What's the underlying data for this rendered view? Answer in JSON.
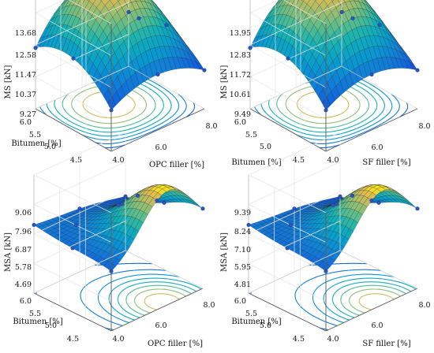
{
  "chart_data": [
    {
      "type": "surface",
      "zlabel": "MS [kN]",
      "ylabel": "Bitumen [%]",
      "xlabel": "OPC filler [%]",
      "z_ticks": [
        "13.68",
        "12.58",
        "11.47",
        "10.37",
        "9.27"
      ],
      "y_ticks": [
        "6.0",
        "5.5",
        "5.0",
        "4.5"
      ],
      "x_ticks": [
        "4.0",
        "6.0",
        "8.0"
      ],
      "zlim": [
        9.27,
        13.68
      ],
      "ylim": [
        4.5,
        6.0
      ],
      "xlim": [
        4.0,
        8.0
      ],
      "surface_shape": "dome",
      "contours": "floor",
      "grid": true
    },
    {
      "type": "surface",
      "zlabel": "MS [kN]",
      "ylabel": "Bitumen [%]",
      "xlabel": "SF filler [%]",
      "z_ticks": [
        "13.95",
        "12.83",
        "11.72",
        "10.61",
        "9.49"
      ],
      "y_ticks": [
        "6.0",
        "5.5",
        "5.0",
        "4.5"
      ],
      "x_ticks": [
        "4.0",
        "6.0",
        "8.0"
      ],
      "zlim": [
        9.49,
        13.95
      ],
      "ylim": [
        4.5,
        6.0
      ],
      "xlim": [
        4.0,
        8.0
      ],
      "surface_shape": "dome",
      "contours": "floor",
      "grid": true
    },
    {
      "type": "surface",
      "zlabel": "MSA [kN]",
      "ylabel": "Bitumen [%]",
      "xlabel": "OPC filler [%]",
      "z_ticks": [
        "9.06",
        "7.96",
        "6.87",
        "5.78",
        "4.69"
      ],
      "y_ticks": [
        "6.0",
        "5.5",
        "5.0",
        "4.5"
      ],
      "x_ticks": [
        "4.0",
        "6.0",
        "8.0"
      ],
      "zlim": [
        4.69,
        9.06
      ],
      "ylim": [
        4.5,
        6.0
      ],
      "xlim": [
        4.0,
        8.0
      ],
      "surface_shape": "saddle",
      "contours": "floor",
      "grid": true
    },
    {
      "type": "surface",
      "zlabel": "MSA [kN]",
      "ylabel": "Bitumen [%]",
      "xlabel": "SF filler [%]",
      "z_ticks": [
        "9.39",
        "8.24",
        "7.10",
        "5.95",
        "4.81"
      ],
      "y_ticks": [
        "6.0",
        "5.5",
        "5.0",
        "4.5"
      ],
      "x_ticks": [
        "4.0",
        "6.0",
        "8.0"
      ],
      "zlim": [
        4.81,
        9.39
      ],
      "ylim": [
        4.5,
        6.0
      ],
      "xlim": [
        4.0,
        8.0
      ],
      "surface_shape": "saddle",
      "contours": "floor",
      "grid": true
    }
  ]
}
